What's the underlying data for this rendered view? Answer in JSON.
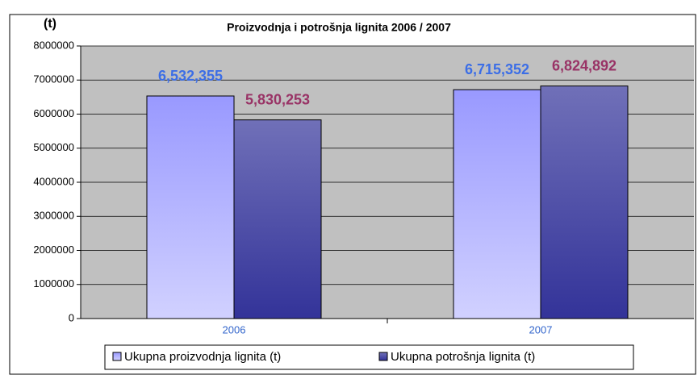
{
  "chart_data": {
    "type": "bar",
    "title": "Proizvodnja i potrošnja lignita 2006 / 2007",
    "y_label": "(t)",
    "categories": [
      "2006",
      "2007"
    ],
    "series": [
      {
        "name": "Ukupna proizvodnja lignita (t)",
        "color": "#9999ff",
        "label_color": "#3c6ee6",
        "values": [
          6532355,
          6715352
        ],
        "value_labels": [
          "6,532,355",
          "6,715,352"
        ]
      },
      {
        "name": "Ukupna potrošnja lignita (t)",
        "color": "#333399",
        "label_color": "#993366",
        "values": [
          5830253,
          6824892
        ],
        "value_labels": [
          "5,830,253",
          "6,824,892"
        ]
      }
    ],
    "ylim": [
      0,
      8000000
    ],
    "yticks": [
      0,
      1000000,
      2000000,
      3000000,
      4000000,
      5000000,
      6000000,
      7000000,
      8000000
    ],
    "grid": true
  }
}
